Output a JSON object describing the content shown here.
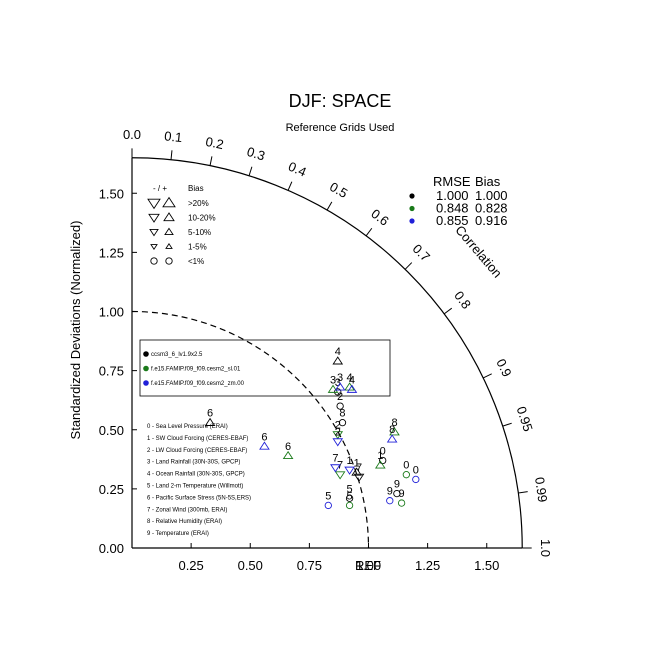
{
  "colors": {
    "black": "#000000",
    "green": "#1a7a1a",
    "blue": "#2020d8",
    "line": "#000000"
  },
  "chart_data": {
    "type": "taylor",
    "title": "DJF: SPACE",
    "subtitle": "Reference Grids Used",
    "ylabel": "Standardized Deviations (Normalized)",
    "angular_label": "Correlation",
    "ref_label": "REF",
    "ylim": [
      0,
      1.65
    ],
    "xlim": [
      0,
      1.65
    ],
    "x_ticks": [
      "0.25",
      "0.50",
      "0.75",
      "1.00",
      "1.25",
      "1.50"
    ],
    "x_tick_values": [
      0.25,
      0.5,
      0.75,
      1.0,
      1.25,
      1.5
    ],
    "y_ticks": [
      "0.00",
      "0.25",
      "0.50",
      "0.75",
      "1.00",
      "1.25",
      "1.50"
    ],
    "y_tick_values": [
      0,
      0.25,
      0.5,
      0.75,
      1.0,
      1.25,
      1.5
    ],
    "corr_ticks": [
      "0.0",
      "0.1",
      "0.2",
      "0.3",
      "0.4",
      "0.5",
      "0.6",
      "0.7",
      "0.8",
      "0.9",
      "0.95",
      "0.99",
      "1.0"
    ],
    "corr_values": [
      0.0,
      0.1,
      0.2,
      0.3,
      0.4,
      0.5,
      0.6,
      0.7,
      0.8,
      0.9,
      0.95,
      0.99,
      1.0
    ],
    "stats_header": {
      "rmse": "RMSE",
      "bias": "Bias"
    },
    "stats_rows": [
      {
        "color": "#000000",
        "rmse": "1.000",
        "bias": "1.000"
      },
      {
        "color": "#1a7a1a",
        "rmse": "0.848",
        "bias": "0.828"
      },
      {
        "color": "#2020d8",
        "rmse": "0.855",
        "bias": "0.916"
      }
    ],
    "bias_legend": {
      "header_sign": "- / +",
      "header_bias": "Bias",
      "rows": [
        {
          "label": ">20%",
          "size": 6
        },
        {
          "label": "10-20%",
          "size": 5
        },
        {
          "label": "5-10%",
          "size": 4
        },
        {
          "label": "1-5%",
          "size": 3
        },
        {
          "label": "<1%",
          "shape": "circle"
        }
      ]
    },
    "case_legend": [
      {
        "label": "ccsm3_6_lv1.9x2.5",
        "color": "#000000"
      },
      {
        "label": "f.e15.FAMIP.f09_f09.cesm2_sl.01",
        "color": "#1a7a1a"
      },
      {
        "label": "f.e15.FAMIP.f09_f09.cesm2_zm.00",
        "color": "#2020d8"
      }
    ],
    "variables": [
      "0 - Sea Level Pressure (ERAI)",
      "1 - SW Cloud Forcing (CERES-EBAF)",
      "2 - LW Cloud Forcing (CERES-EBAF)",
      "3 - Land Rainfall (30N-30S, GPCP)",
      "4 - Ocean Rainfall (30N-30S, GPCP)",
      "5 - Land 2-m Temperature (Willmott)",
      "6 - Pacific Surface Stress (5N-5S,ERS)",
      "7 - Zonal Wind (300mb, ERAI)",
      "8 - Relative Humidity (ERAI)",
      "9 - Temperature (ERAI)"
    ],
    "series": [
      {
        "case": 0,
        "points": [
          {
            "id": "0",
            "x": 1.06,
            "y": 0.37,
            "marker": "circle"
          },
          {
            "id": "1",
            "x": 0.95,
            "y": 0.32,
            "marker": "up"
          },
          {
            "id": "2",
            "x": 0.88,
            "y": 0.6,
            "marker": "circle"
          },
          {
            "id": "3",
            "x": 0.87,
            "y": 0.66,
            "marker": "circle"
          },
          {
            "id": "4",
            "x": 0.87,
            "y": 0.79,
            "marker": "up"
          },
          {
            "id": "5",
            "x": 0.92,
            "y": 0.21,
            "marker": "circle"
          },
          {
            "id": "6",
            "x": 0.33,
            "y": 0.53,
            "marker": "up"
          },
          {
            "id": "7",
            "x": 0.96,
            "y": 0.3,
            "marker": "down"
          },
          {
            "id": "8",
            "x": 0.89,
            "y": 0.53,
            "marker": "circle"
          },
          {
            "id": "9",
            "x": 1.12,
            "y": 0.23,
            "marker": "circle"
          }
        ]
      },
      {
        "case": 1,
        "points": [
          {
            "id": "0",
            "x": 1.16,
            "y": 0.31,
            "marker": "circle"
          },
          {
            "id": "1",
            "x": 1.05,
            "y": 0.35,
            "marker": "up"
          },
          {
            "id": "2",
            "x": 0.87,
            "y": 0.48,
            "marker": "down"
          },
          {
            "id": "3",
            "x": 0.85,
            "y": 0.67,
            "marker": "up"
          },
          {
            "id": "4",
            "x": 0.92,
            "y": 0.68,
            "marker": "up"
          },
          {
            "id": "5",
            "x": 0.92,
            "y": 0.18,
            "marker": "circle"
          },
          {
            "id": "6",
            "x": 0.66,
            "y": 0.39,
            "marker": "up"
          },
          {
            "id": "7",
            "x": 0.88,
            "y": 0.31,
            "marker": "down"
          },
          {
            "id": "8",
            "x": 1.11,
            "y": 0.49,
            "marker": "up"
          },
          {
            "id": "9",
            "x": 1.14,
            "y": 0.19,
            "marker": "circle"
          }
        ]
      },
      {
        "case": 2,
        "points": [
          {
            "id": "0",
            "x": 1.2,
            "y": 0.29,
            "marker": "circle"
          },
          {
            "id": "1",
            "x": 0.92,
            "y": 0.33,
            "marker": "down"
          },
          {
            "id": "2",
            "x": 0.87,
            "y": 0.45,
            "marker": "down"
          },
          {
            "id": "3",
            "x": 0.88,
            "y": 0.68,
            "marker": "up"
          },
          {
            "id": "4",
            "x": 0.93,
            "y": 0.67,
            "marker": "up"
          },
          {
            "id": "5",
            "x": 0.83,
            "y": 0.18,
            "marker": "circle"
          },
          {
            "id": "6",
            "x": 0.56,
            "y": 0.43,
            "marker": "up"
          },
          {
            "id": "7",
            "x": 0.86,
            "y": 0.34,
            "marker": "down"
          },
          {
            "id": "8",
            "x": 1.1,
            "y": 0.46,
            "marker": "up"
          },
          {
            "id": "9",
            "x": 1.09,
            "y": 0.2,
            "marker": "circle"
          }
        ]
      }
    ]
  }
}
